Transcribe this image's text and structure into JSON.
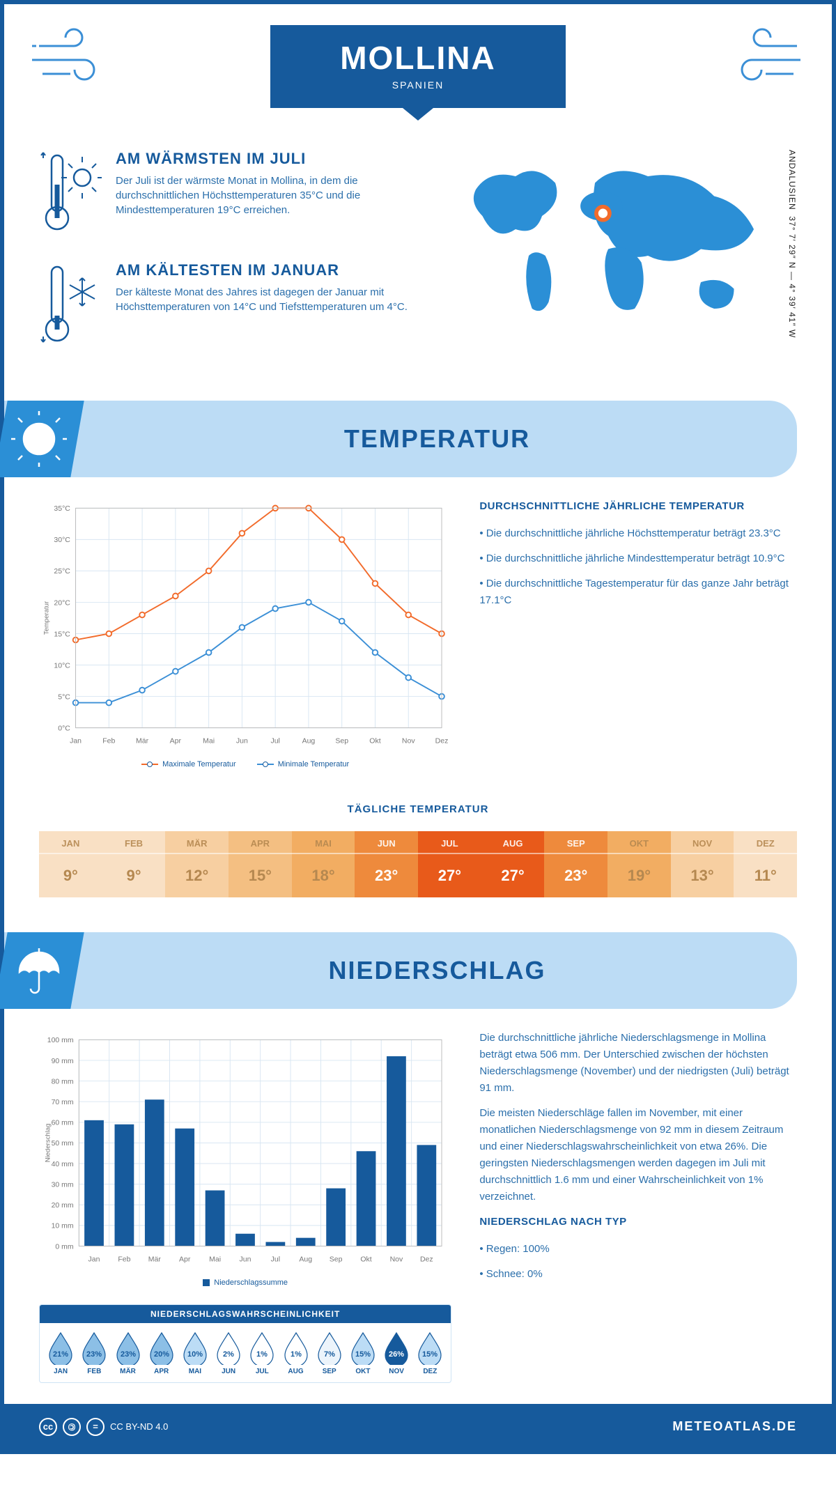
{
  "header": {
    "title": "MOLLINA",
    "subtitle": "SPANIEN",
    "coords": "37° 7′ 29″ N — 4° 39′ 41″ W",
    "region": "ANDALUSIEN"
  },
  "facts": {
    "warm": {
      "title": "AM WÄRMSTEN IM JULI",
      "text": "Der Juli ist der wärmste Monat in Mollina, in dem die durchschnittlichen Höchsttemperaturen 35°C und die Mindesttemperaturen 19°C erreichen."
    },
    "cold": {
      "title": "AM KÄLTESTEN IM JANUAR",
      "text": "Der kälteste Monat des Jahres ist dagegen der Januar mit Höchsttemperaturen von 14°C und Tiefsttemperaturen um 4°C."
    }
  },
  "sections": {
    "temperature": "TEMPERATUR",
    "precipitation": "NIEDERSCHLAG"
  },
  "temp_chart": {
    "months": [
      "Jan",
      "Feb",
      "Mär",
      "Apr",
      "Mai",
      "Jun",
      "Jul",
      "Aug",
      "Sep",
      "Okt",
      "Nov",
      "Dez"
    ],
    "max": [
      14,
      15,
      18,
      21,
      25,
      31,
      35,
      35,
      30,
      23,
      18,
      15
    ],
    "min": [
      4,
      4,
      6,
      9,
      12,
      16,
      19,
      20,
      17,
      12,
      8,
      5
    ],
    "ylim": [
      0,
      35
    ],
    "ytick": 5,
    "max_color": "#f26b2b",
    "min_color": "#3b8fd6",
    "grid_color": "#d8e6f2",
    "y_label": "Temperatur",
    "legend_max": "Maximale Temperatur",
    "legend_min": "Minimale Temperatur"
  },
  "temp_side": {
    "title": "DURCHSCHNITTLICHE JÄHRLICHE TEMPERATUR",
    "bullets": [
      "Die durchschnittliche jährliche Höchsttemperatur beträgt 23.3°C",
      "Die durchschnittliche jährliche Mindesttemperatur beträgt 10.9°C",
      "Die durchschnittliche Tagestemperatur für das ganze Jahr beträgt 17.1°C"
    ]
  },
  "daily": {
    "title": "TÄGLICHE TEMPERATUR",
    "months": [
      "JAN",
      "FEB",
      "MÄR",
      "APR",
      "MAI",
      "JUN",
      "JUL",
      "AUG",
      "SEP",
      "OKT",
      "NOV",
      "DEZ"
    ],
    "values": [
      "9°",
      "9°",
      "12°",
      "15°",
      "18°",
      "23°",
      "27°",
      "27°",
      "23°",
      "19°",
      "13°",
      "11°"
    ],
    "colors": [
      "#f9e0c4",
      "#f9e0c4",
      "#f7cfa1",
      "#f4bf82",
      "#f2ad62",
      "#ee8a3c",
      "#e85a1a",
      "#e85a1a",
      "#ee8a3c",
      "#f2ad62",
      "#f7cfa1",
      "#f9e0c4"
    ],
    "text_colors": [
      "#b58850",
      "#b58850",
      "#b58850",
      "#b58850",
      "#b58850",
      "#fff",
      "#fff",
      "#fff",
      "#fff",
      "#b58850",
      "#b58850",
      "#b58850"
    ]
  },
  "precip_chart": {
    "months": [
      "Jan",
      "Feb",
      "Mär",
      "Apr",
      "Mai",
      "Jun",
      "Jul",
      "Aug",
      "Sep",
      "Okt",
      "Nov",
      "Dez"
    ],
    "values": [
      61,
      59,
      71,
      57,
      27,
      6,
      2,
      4,
      28,
      46,
      92,
      49
    ],
    "ylim": [
      0,
      100
    ],
    "ytick": 10,
    "bar_color": "#165a9c",
    "grid_color": "#d8e6f2",
    "y_label": "Niederschlag",
    "legend": "Niederschlagssumme"
  },
  "precip_side": {
    "p1": "Die durchschnittliche jährliche Niederschlagsmenge in Mollina beträgt etwa 506 mm. Der Unterschied zwischen der höchsten Niederschlagsmenge (November) und der niedrigsten (Juli) beträgt 91 mm.",
    "p2": "Die meisten Niederschläge fallen im November, mit einer monatlichen Niederschlagsmenge von 92 mm in diesem Zeitraum und einer Niederschlagswahrscheinlichkeit von etwa 26%. Die geringsten Niederschlagsmengen werden dagegen im Juli mit durchschnittlich 1.6 mm und einer Wahrscheinlichkeit von 1% verzeichnet.",
    "type_title": "NIEDERSCHLAG NACH TYP",
    "type_rain": "Regen: 100%",
    "type_snow": "Schnee: 0%"
  },
  "precip_prob": {
    "title": "NIEDERSCHLAGSWAHRSCHEINLICHKEIT",
    "months": [
      "JAN",
      "FEB",
      "MÄR",
      "APR",
      "MAI",
      "JUN",
      "JUL",
      "AUG",
      "SEP",
      "OKT",
      "NOV",
      "DEZ"
    ],
    "values": [
      "21%",
      "23%",
      "23%",
      "20%",
      "10%",
      "2%",
      "1%",
      "1%",
      "7%",
      "15%",
      "26%",
      "15%"
    ],
    "fills": [
      "#8cbfe6",
      "#8cbfe6",
      "#8cbfe6",
      "#8cbfe6",
      "#bcdcf5",
      "#ffffff",
      "#ffffff",
      "#ffffff",
      "#ecf4fb",
      "#bcdcf5",
      "#165a9c",
      "#bcdcf5"
    ],
    "text": [
      "#165a9c",
      "#165a9c",
      "#165a9c",
      "#165a9c",
      "#165a9c",
      "#165a9c",
      "#165a9c",
      "#165a9c",
      "#165a9c",
      "#165a9c",
      "#ffffff",
      "#165a9c"
    ]
  },
  "footer": {
    "license": "CC BY-ND 4.0",
    "brand": "METEOATLAS.DE"
  }
}
